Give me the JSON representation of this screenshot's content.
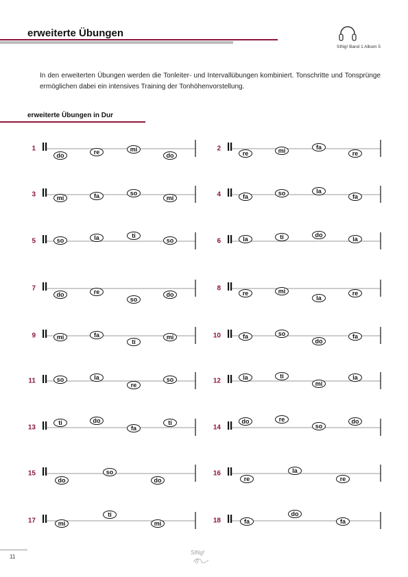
{
  "header": {
    "title": "erweiterte Übungen",
    "book": "SINg! Band 1 Album 5"
  },
  "intro": "In den erweiterten Übungen werden die Tonleiter- und Intervallübungen kombiniert.  Tonschritte und Tonsprünge ermöglichen dabei ein intensives Training der Tonhöhenvorstellung.",
  "section": {
    "title": "erweiterte Übungen in Dur"
  },
  "exercises": [
    {
      "number": 1,
      "notes": [
        "do",
        "re",
        "mi",
        "do"
      ]
    },
    {
      "number": 2,
      "notes": [
        "re",
        "mi",
        "fa",
        "re"
      ]
    },
    {
      "number": 3,
      "notes": [
        "mi",
        "fa",
        "so",
        "mi"
      ]
    },
    {
      "number": 4,
      "notes": [
        "fa",
        "so",
        "la",
        "fa"
      ]
    },
    {
      "number": 5,
      "notes": [
        "so",
        "la",
        "ti",
        "so"
      ]
    },
    {
      "number": 6,
      "notes": [
        "la",
        "ti",
        "do",
        "la"
      ]
    },
    {
      "number": 7,
      "notes": [
        "do",
        "re",
        "so",
        "do"
      ]
    },
    {
      "number": 8,
      "notes": [
        "re",
        "mi",
        "la",
        "re"
      ]
    },
    {
      "number": 9,
      "notes": [
        "mi",
        "fa",
        "ti",
        "mi"
      ]
    },
    {
      "number": 10,
      "notes": [
        "fa",
        "so",
        "do",
        "fa"
      ]
    },
    {
      "number": 11,
      "notes": [
        "so",
        "la",
        "re",
        "so"
      ]
    },
    {
      "number": 12,
      "notes": [
        "la",
        "ti",
        "mi",
        "la"
      ]
    },
    {
      "number": 13,
      "notes": [
        "ti",
        "do",
        "fa",
        "ti"
      ]
    },
    {
      "number": 14,
      "notes": [
        "do",
        "re",
        "so",
        "do"
      ]
    },
    {
      "number": 15,
      "notes": [
        "do",
        "so",
        "do"
      ]
    },
    {
      "number": 16,
      "notes": [
        "re",
        "la",
        "re"
      ]
    },
    {
      "number": 17,
      "notes": [
        "mi",
        "ti",
        "mi"
      ]
    },
    {
      "number": 18,
      "notes": [
        "fa",
        "do",
        "fa"
      ]
    }
  ],
  "footer": {
    "page": "11",
    "logo": "SINg!"
  }
}
